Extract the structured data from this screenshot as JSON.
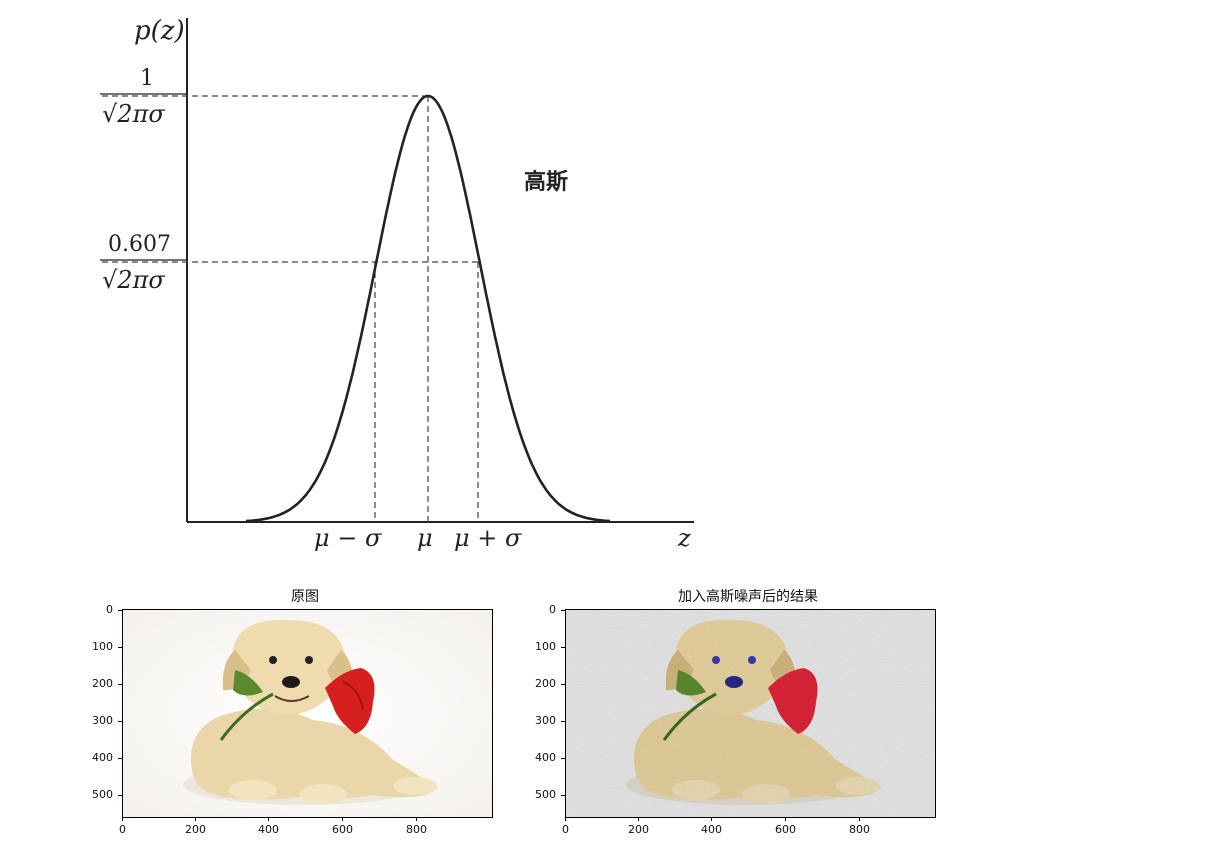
{
  "gaussian": {
    "p_label": "p(z)",
    "z_label": "z",
    "peak_num": "1",
    "peak_den": "√2πσ",
    "sig_num": "0.607",
    "sig_den": "√2πσ",
    "annotation": "高斯",
    "x_marks": [
      "μ − σ",
      "μ",
      "μ + σ"
    ]
  },
  "chart_data": {
    "type": "line",
    "series": [
      {
        "x": [
          -3.5,
          -3,
          -2.5,
          -2,
          -1.5,
          -1,
          -0.5,
          0,
          0.5,
          1,
          1.5,
          2,
          2.5,
          3,
          3.5
        ],
        "y": [
          0.002,
          0.011,
          0.044,
          0.135,
          0.325,
          0.607,
          0.882,
          1.0,
          0.882,
          0.607,
          0.325,
          0.135,
          0.044,
          0.011,
          0.002
        ]
      }
    ]
  },
  "panels": [
    {
      "title": "原图",
      "xticks": [
        "0",
        "200",
        "400",
        "600",
        "800"
      ],
      "yticks": [
        "0",
        "100",
        "200",
        "300",
        "400",
        "500"
      ]
    },
    {
      "title": "加入高斯噪声后的结果",
      "xticks": [
        "0",
        "200",
        "400",
        "600",
        "800"
      ],
      "yticks": [
        "0",
        "100",
        "200",
        "300",
        "400",
        "500"
      ]
    }
  ]
}
